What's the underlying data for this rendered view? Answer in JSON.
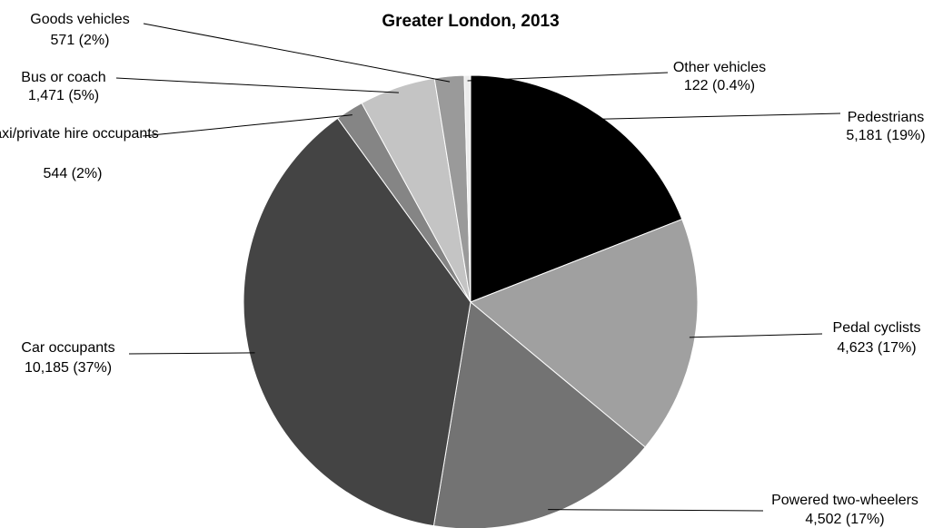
{
  "chart_data": {
    "type": "pie",
    "title": "Greater London, 2013",
    "categories": [
      "Pedestrians",
      "Pedal cyclists",
      "Powered two-wheelers",
      "Car occupants",
      "Taxi/private hire occupants",
      "Bus or coach",
      "Goods vehicles",
      "Other vehicles"
    ],
    "values": [
      5181,
      4623,
      4502,
      10185,
      544,
      1471,
      571,
      122
    ],
    "value_labels": [
      "5,181 (19%)",
      "4,623 (17%)",
      "4,502 (17%)",
      "10,185 (37%)",
      "544 (2%)",
      "1,471 (5%)",
      "571 (2%)",
      "122 (0.4%)"
    ],
    "colors": [
      "#000000",
      "#a0a0a0",
      "#737373",
      "#444444",
      "#858585",
      "#c4c4c4",
      "#9a9a9a",
      "#ececec"
    ]
  }
}
